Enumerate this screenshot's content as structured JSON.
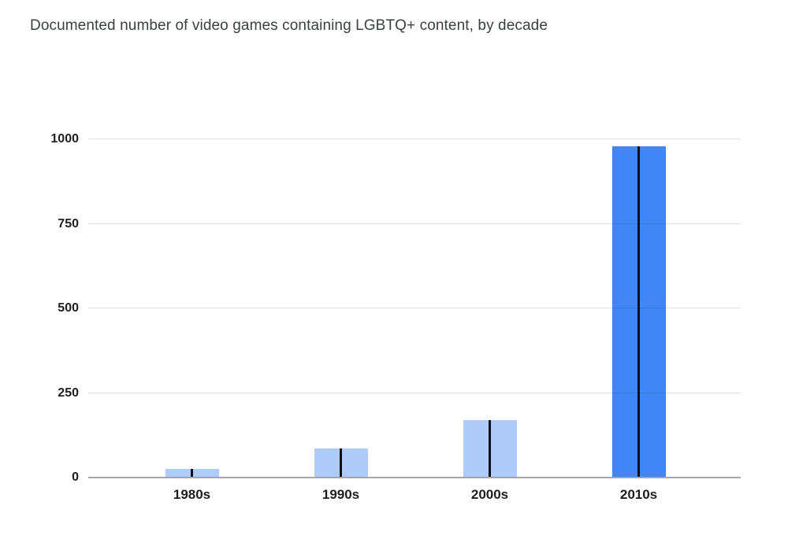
{
  "chart_data": {
    "type": "bar",
    "title": "Documented number of video games containing LGBTQ+ content, by decade",
    "categories": [
      "1980s",
      "1990s",
      "2000s",
      "2010s"
    ],
    "values": [
      25,
      85,
      170,
      980
    ],
    "xlabel": "",
    "ylabel": "",
    "ylim": [
      0,
      1000
    ],
    "yticks": [
      "0",
      "250",
      "500",
      "750",
      "1000"
    ],
    "ytick_values": [
      0,
      250,
      500,
      750,
      1000
    ],
    "grid": true,
    "legend": "none",
    "bar_colors": [
      "#aecbfa",
      "#aecbfa",
      "#aecbfa",
      "#4285f4"
    ]
  },
  "colors": {
    "title_text": "#3c4043",
    "axis_label_text": "#1f1f1f",
    "gridline": "#202124",
    "baseline": "#a6a6a6",
    "bar_light": "#aecbfa",
    "bar_highlight": "#4285f4",
    "bar_center_line": "#0d1117"
  }
}
